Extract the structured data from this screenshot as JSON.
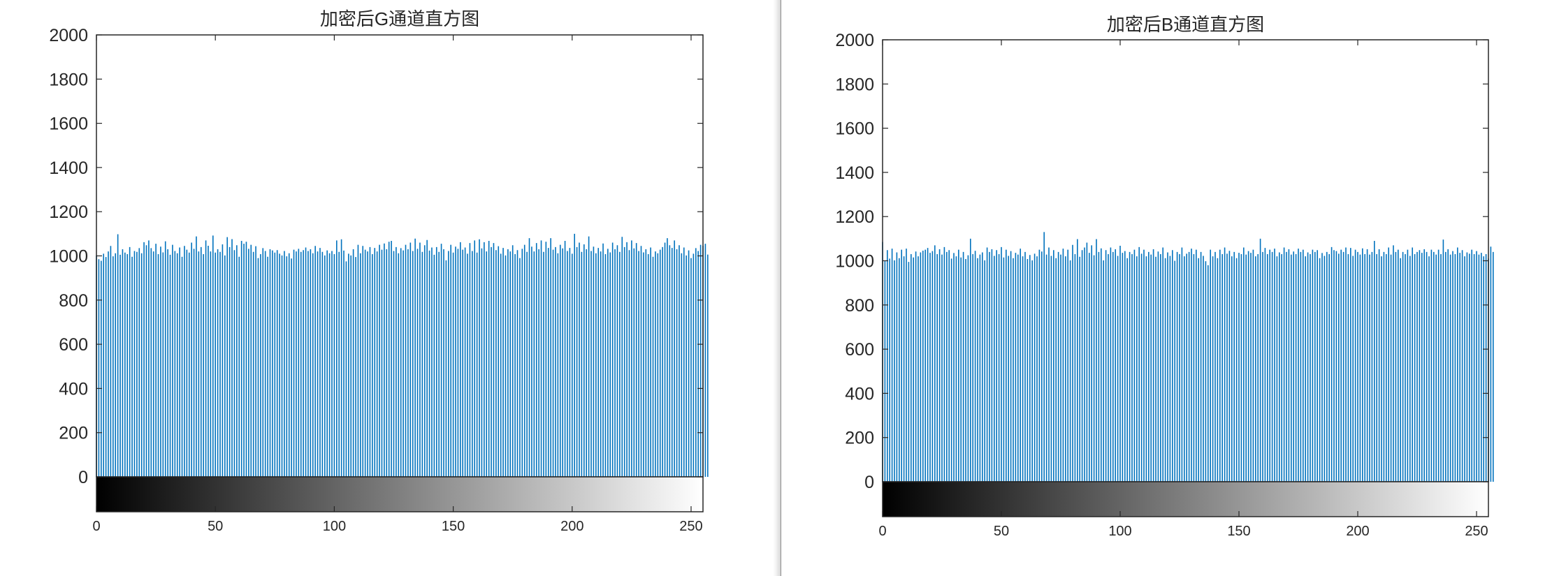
{
  "figures": [
    {
      "title": "加密后G通道直方图",
      "y_ticks": [
        "0",
        "200",
        "400",
        "600",
        "800",
        "1000",
        "1200",
        "1400",
        "1600",
        "1800",
        "2000"
      ],
      "x_ticks": [
        "0",
        "50",
        "100",
        "150",
        "200",
        "250"
      ]
    },
    {
      "title": "加密后B通道直方图",
      "y_ticks": [
        "0",
        "200",
        "400",
        "600",
        "800",
        "1000",
        "1200",
        "1400",
        "1600",
        "1800",
        "2000"
      ],
      "x_ticks": [
        "0",
        "50",
        "100",
        "150",
        "200",
        "250"
      ]
    }
  ],
  "chart_data": [
    {
      "type": "bar",
      "title": "加密后G通道直方图",
      "xlabel": "",
      "ylabel": "",
      "xlim": [
        0,
        255
      ],
      "ylim": [
        0,
        2000
      ],
      "grid": false,
      "bar_color": "#0072BD",
      "colorbar": "grayscale 0 to 255 below x-axis",
      "x_start": 0,
      "values": [
        1002,
        985,
        978,
        1010,
        995,
        1020,
        1045,
        998,
        1012,
        1098,
        1005,
        1030,
        1015,
        1008,
        1040,
        996,
        1022,
        1018,
        1035,
        1012,
        1062,
        1048,
        1070,
        1035,
        1020,
        1055,
        1008,
        1042,
        1016,
        1066,
        1030,
        1005,
        1050,
        1022,
        1012,
        1038,
        996,
        1045,
        1028,
        1015,
        1060,
        1032,
        1088,
        1020,
        1040,
        1008,
        1070,
        1046,
        1020,
        1092,
        1015,
        1030,
        1018,
        1052,
        1002,
        1085,
        1040,
        1076,
        1026,
        1048,
        996,
        1068,
        1055,
        1064,
        1032,
        1050,
        1018,
        1044,
        990,
        1008,
        1035,
        1022,
        996,
        1030,
        1025,
        1015,
        1026,
        1010,
        1002,
        1022,
        998,
        1012,
        988,
        1028,
        1020,
        1032,
        1018,
        1026,
        1038,
        1022,
        1030,
        1012,
        1045,
        1020,
        1036,
        1018,
        1002,
        1025,
        1012,
        1022,
        1008,
        1070,
        1018,
        1075,
        1024,
        975,
        1010,
        1002,
        1030,
        995,
        1050,
        1012,
        1045,
        1028,
        1020,
        1040,
        1008,
        1036,
        1020,
        1050,
        1028,
        1056,
        1030,
        1064,
        1068,
        1022,
        1040,
        1012,
        1035,
        1025,
        1050,
        1030,
        1060,
        1022,
        1078,
        1032,
        1060,
        1018,
        1048,
        1072,
        1024,
        1038,
        1005,
        1040,
        1018,
        1055,
        1030,
        980,
        1022,
        1050,
        1015,
        1042,
        1032,
        1062,
        1028,
        1038,
        1010,
        1058,
        1022,
        1070,
        1015,
        1075,
        1034,
        1062,
        1020,
        1068,
        1040,
        1058,
        1026,
        1044,
        1010,
        1036,
        1002,
        1030,
        1020,
        1048,
        1008,
        1026,
        990,
        1032,
        1050,
        1018,
        1080,
        1042,
        1020,
        1058,
        1030,
        1070,
        1018,
        1064,
        1036,
        1080,
        1028,
        1040,
        1012,
        1050,
        1034,
        1068,
        1022,
        1036,
        1010,
        1100,
        1040,
        1060,
        1018,
        1052,
        1030,
        1088,
        1022,
        1042,
        1012,
        1036,
        1020,
        1056,
        1008,
        1032,
        1016,
        1060,
        1030,
        1048,
        1018,
        1086,
        1040,
        1062,
        1026,
        1070,
        1034,
        1058,
        1022,
        1045,
        1016,
        1030,
        1008,
        1038,
        996,
        1020,
        1012,
        1028,
        1040,
        1060,
        1080,
        1048,
        1036,
        1070,
        1030,
        1048,
        1012,
        1038,
        1002,
        1025,
        990,
        1010,
        1035,
        1022,
        1050,
        1046,
        1055,
        1006
      ]
    },
    {
      "type": "bar",
      "title": "加密后B通道直方图",
      "xlabel": "",
      "ylabel": "",
      "xlim": [
        0,
        255
      ],
      "ylim": [
        0,
        2000
      ],
      "grid": false,
      "bar_color": "#0072BD",
      "colorbar": "grayscale 0 to 255 below x-axis",
      "x_start": 0,
      "values": [
        1085,
        1000,
        1048,
        1010,
        1055,
        1002,
        1038,
        1012,
        1050,
        1020,
        1055,
        995,
        1030,
        1015,
        1042,
        1020,
        1038,
        1046,
        1050,
        1058,
        1036,
        1044,
        1070,
        1030,
        1052,
        1028,
        1062,
        1040,
        1048,
        1010,
        1035,
        1020,
        1050,
        1015,
        1040,
        1008,
        1025,
        1100,
        1030,
        1045,
        1012,
        1028,
        1038,
        1002,
        1060,
        1040,
        1052,
        1022,
        1048,
        1030,
        1062,
        1015,
        1050,
        1022,
        1044,
        1012,
        1036,
        1028,
        1055,
        1020,
        1040,
        1008,
        1026,
        1002,
        1032,
        1020,
        1050,
        1042,
        1130,
        1028,
        1060,
        1022,
        1048,
        1012,
        1040,
        1028,
        1055,
        1020,
        1050,
        1002,
        1072,
        1030,
        1098,
        1018,
        1048,
        1060,
        1082,
        1036,
        1070,
        1025,
        1098,
        1040,
        1056,
        1002,
        1048,
        1030,
        1060,
        1040,
        1052,
        1022,
        1068,
        1036,
        1044,
        1012,
        1040,
        1030,
        1050,
        1020,
        1062,
        1032,
        1050,
        1020,
        1040,
        1028,
        1052,
        1018,
        1042,
        1030,
        1060,
        1012,
        1038,
        1022,
        1048,
        1000,
        1040,
        1030,
        1060,
        1020,
        1032,
        1040,
        1055,
        1030,
        1050,
        1012,
        1040,
        1022,
        998,
        980,
        1050,
        1020,
        1040,
        1012,
        1050,
        1030,
        1060,
        1032,
        1045,
        1020,
        1040,
        1012,
        1036,
        1030,
        1060,
        1028,
        1044,
        1036,
        1050,
        1020,
        1030,
        1100,
        1040,
        1058,
        1030,
        1050,
        1040,
        1055,
        1020,
        1038,
        1030,
        1060,
        1040,
        1052,
        1028,
        1042,
        1030,
        1055,
        1040,
        1050,
        1020,
        1038,
        1030,
        1050,
        1040,
        1048,
        1012,
        1035,
        1022,
        1040,
        1030,
        1062,
        1048,
        1044,
        1032,
        1050,
        1040,
        1060,
        1030,
        1058,
        1022,
        1050,
        1040,
        1028,
        1056,
        1030,
        1052,
        1028,
        1040,
        1090,
        1030,
        1052,
        1020,
        1040,
        1030,
        1060,
        1028,
        1070,
        1040,
        1050,
        1012,
        1040,
        1030,
        1050,
        1022,
        1060,
        1030,
        1040,
        1048,
        1036,
        1052,
        1040,
        1020,
        1050,
        1040,
        1028,
        1050,
        1030,
        1096,
        1040,
        1052,
        1028,
        1044,
        1030,
        1060,
        1036,
        1048,
        1020,
        1038,
        1032,
        1050,
        1030,
        1044,
        1028,
        1036,
        1020,
        1030,
        1010,
        1064,
        1040
      ]
    }
  ]
}
